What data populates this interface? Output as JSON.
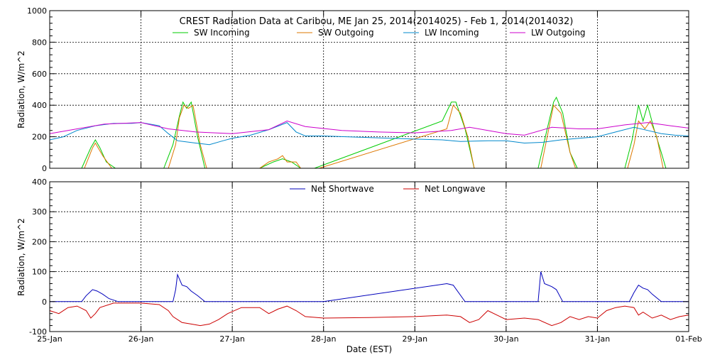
{
  "chart_data": [
    {
      "type": "line",
      "title": "CREST Radiation Data at Caribou, ME   Jan 25, 2014(2014025) - Feb  1, 2014(2014032)",
      "ylabel": "Radiation, W/m^2",
      "xlabel": "",
      "xlim": [
        0,
        7
      ],
      "ylim": [
        0,
        1000
      ],
      "yticks": [
        0,
        200,
        400,
        600,
        800,
        1000
      ],
      "x_tick_labels": [
        "25-Jan",
        "26-Jan",
        "27-Jan",
        "28-Jan",
        "29-Jan",
        "30-Jan",
        "31-Jan",
        "01-Feb"
      ],
      "grid": true,
      "legend_position": "top",
      "series": [
        {
          "name": "SW Incoming",
          "color": "#00cc00",
          "points": [
            [
              0.35,
              0
            ],
            [
              0.45,
              130
            ],
            [
              0.5,
              180
            ],
            [
              0.55,
              130
            ],
            [
              0.62,
              40
            ],
            [
              0.72,
              0
            ],
            [
              1.25,
              0
            ],
            [
              1.35,
              150
            ],
            [
              1.42,
              330
            ],
            [
              1.46,
              420
            ],
            [
              1.5,
              380
            ],
            [
              1.55,
              420
            ],
            [
              1.62,
              200
            ],
            [
              1.7,
              0
            ],
            [
              2.3,
              0
            ],
            [
              2.45,
              40
            ],
            [
              2.55,
              60
            ],
            [
              2.65,
              40
            ],
            [
              2.75,
              0
            ],
            [
              2.9,
              0
            ],
            [
              4.3,
              300
            ],
            [
              4.4,
              420
            ],
            [
              4.45,
              420
            ],
            [
              4.55,
              250
            ],
            [
              4.65,
              0
            ],
            [
              5.35,
              0
            ],
            [
              5.45,
              250
            ],
            [
              5.52,
              420
            ],
            [
              5.55,
              450
            ],
            [
              5.62,
              350
            ],
            [
              5.7,
              100
            ],
            [
              5.78,
              0
            ],
            [
              6.3,
              0
            ],
            [
              6.38,
              180
            ],
            [
              6.45,
              400
            ],
            [
              6.5,
              300
            ],
            [
              6.55,
              400
            ],
            [
              6.62,
              250
            ],
            [
              6.7,
              100
            ],
            [
              6.75,
              0
            ]
          ]
        },
        {
          "name": "SW Outgoing",
          "color": "#dd7700",
          "points": [
            [
              0.38,
              0
            ],
            [
              0.47,
              130
            ],
            [
              0.5,
              160
            ],
            [
              0.58,
              80
            ],
            [
              0.68,
              0
            ],
            [
              1.3,
              0
            ],
            [
              1.38,
              150
            ],
            [
              1.42,
              320
            ],
            [
              1.47,
              400
            ],
            [
              1.52,
              380
            ],
            [
              1.57,
              400
            ],
            [
              1.65,
              150
            ],
            [
              1.72,
              0
            ],
            [
              2.3,
              0
            ],
            [
              2.4,
              40
            ],
            [
              2.5,
              60
            ],
            [
              2.55,
              80
            ],
            [
              2.6,
              40
            ],
            [
              2.7,
              40
            ],
            [
              2.75,
              0
            ],
            [
              2.95,
              0
            ],
            [
              4.35,
              250
            ],
            [
              4.42,
              400
            ],
            [
              4.5,
              350
            ],
            [
              4.58,
              200
            ],
            [
              4.65,
              0
            ],
            [
              5.38,
              0
            ],
            [
              5.45,
              200
            ],
            [
              5.52,
              400
            ],
            [
              5.6,
              350
            ],
            [
              5.7,
              100
            ],
            [
              5.76,
              0
            ],
            [
              6.33,
              0
            ],
            [
              6.4,
              150
            ],
            [
              6.45,
              300
            ],
            [
              6.52,
              250
            ],
            [
              6.58,
              300
            ],
            [
              6.65,
              200
            ],
            [
              6.72,
              0
            ]
          ]
        },
        {
          "name": "LW Incoming",
          "color": "#0088cc",
          "points": [
            [
              0,
              180
            ],
            [
              0.15,
              200
            ],
            [
              0.3,
              240
            ],
            [
              0.5,
              270
            ],
            [
              0.7,
              285
            ],
            [
              0.9,
              285
            ],
            [
              1.0,
              290
            ],
            [
              1.2,
              270
            ],
            [
              1.3,
              220
            ],
            [
              1.4,
              175
            ],
            [
              1.6,
              160
            ],
            [
              1.75,
              150
            ],
            [
              1.9,
              175
            ],
            [
              2.0,
              190
            ],
            [
              2.2,
              210
            ],
            [
              2.4,
              245
            ],
            [
              2.6,
              290
            ],
            [
              2.7,
              230
            ],
            [
              2.8,
              205
            ],
            [
              3.0,
              205
            ],
            [
              3.5,
              195
            ],
            [
              4.0,
              185
            ],
            [
              4.3,
              180
            ],
            [
              4.5,
              170
            ],
            [
              4.8,
              175
            ],
            [
              5.0,
              175
            ],
            [
              5.2,
              160
            ],
            [
              5.4,
              165
            ],
            [
              5.6,
              180
            ],
            [
              5.8,
              190
            ],
            [
              6.0,
              200
            ],
            [
              6.2,
              230
            ],
            [
              6.4,
              260
            ],
            [
              6.55,
              240
            ],
            [
              6.7,
              220
            ],
            [
              6.85,
              210
            ],
            [
              7.0,
              205
            ]
          ]
        },
        {
          "name": "LW Outgoing",
          "color": "#cc00cc",
          "points": [
            [
              0,
              220
            ],
            [
              0.3,
              250
            ],
            [
              0.6,
              280
            ],
            [
              1.0,
              290
            ],
            [
              1.3,
              250
            ],
            [
              1.6,
              230
            ],
            [
              2.0,
              220
            ],
            [
              2.4,
              245
            ],
            [
              2.6,
              300
            ],
            [
              2.8,
              265
            ],
            [
              3.2,
              240
            ],
            [
              3.6,
              230
            ],
            [
              4.0,
              225
            ],
            [
              4.4,
              240
            ],
            [
              4.6,
              260
            ],
            [
              5.0,
              220
            ],
            [
              5.2,
              210
            ],
            [
              5.5,
              260
            ],
            [
              5.8,
              250
            ],
            [
              6.0,
              250
            ],
            [
              6.3,
              275
            ],
            [
              6.55,
              290
            ],
            [
              6.8,
              270
            ],
            [
              7.0,
              255
            ]
          ]
        }
      ]
    },
    {
      "type": "line",
      "title": "",
      "ylabel": "Radiation, W/m^2",
      "xlabel": "Date (EST)",
      "xlim": [
        0,
        7
      ],
      "ylim": [
        -100,
        400
      ],
      "yticks": [
        -100,
        0,
        100,
        200,
        300,
        400
      ],
      "x_tick_labels": [
        "25-Jan",
        "26-Jan",
        "27-Jan",
        "28-Jan",
        "29-Jan",
        "30-Jan",
        "31-Jan",
        "01-Feb"
      ],
      "grid": true,
      "legend_position": "top",
      "series": [
        {
          "name": "Net Shortwave",
          "color": "#0000bb",
          "points": [
            [
              0,
              0
            ],
            [
              0.35,
              0
            ],
            [
              0.4,
              20
            ],
            [
              0.47,
              40
            ],
            [
              0.52,
              35
            ],
            [
              0.58,
              25
            ],
            [
              0.65,
              10
            ],
            [
              0.75,
              0
            ],
            [
              1.35,
              0
            ],
            [
              1.38,
              40
            ],
            [
              1.4,
              90
            ],
            [
              1.45,
              55
            ],
            [
              1.5,
              50
            ],
            [
              1.55,
              35
            ],
            [
              1.62,
              20
            ],
            [
              1.7,
              0
            ],
            [
              3.0,
              0
            ],
            [
              4.35,
              60
            ],
            [
              4.42,
              55
            ],
            [
              4.55,
              0
            ],
            [
              5.35,
              0
            ],
            [
              5.38,
              100
            ],
            [
              5.42,
              60
            ],
            [
              5.5,
              50
            ],
            [
              5.55,
              40
            ],
            [
              5.62,
              0
            ],
            [
              6.35,
              0
            ],
            [
              6.4,
              30
            ],
            [
              6.45,
              55
            ],
            [
              6.5,
              45
            ],
            [
              6.55,
              40
            ],
            [
              6.6,
              25
            ],
            [
              6.7,
              0
            ],
            [
              7.0,
              0
            ]
          ]
        },
        {
          "name": "Net Longwave",
          "color": "#cc0000",
          "points": [
            [
              0,
              -30
            ],
            [
              0.1,
              -40
            ],
            [
              0.2,
              -20
            ],
            [
              0.3,
              -15
            ],
            [
              0.4,
              -30
            ],
            [
              0.45,
              -55
            ],
            [
              0.5,
              -40
            ],
            [
              0.55,
              -20
            ],
            [
              0.7,
              -5
            ],
            [
              1.0,
              -5
            ],
            [
              1.2,
              -10
            ],
            [
              1.3,
              -30
            ],
            [
              1.35,
              -50
            ],
            [
              1.45,
              -70
            ],
            [
              1.55,
              -75
            ],
            [
              1.65,
              -80
            ],
            [
              1.75,
              -75
            ],
            [
              1.85,
              -60
            ],
            [
              1.95,
              -40
            ],
            [
              2.1,
              -20
            ],
            [
              2.3,
              -20
            ],
            [
              2.4,
              -40
            ],
            [
              2.5,
              -25
            ],
            [
              2.6,
              -15
            ],
            [
              2.7,
              -30
            ],
            [
              2.8,
              -50
            ],
            [
              3.0,
              -55
            ],
            [
              3.5,
              -53
            ],
            [
              4.0,
              -50
            ],
            [
              4.35,
              -45
            ],
            [
              4.5,
              -50
            ],
            [
              4.6,
              -70
            ],
            [
              4.7,
              -60
            ],
            [
              4.8,
              -30
            ],
            [
              4.9,
              -45
            ],
            [
              5.0,
              -60
            ],
            [
              5.2,
              -55
            ],
            [
              5.35,
              -60
            ],
            [
              5.5,
              -80
            ],
            [
              5.6,
              -70
            ],
            [
              5.7,
              -50
            ],
            [
              5.8,
              -60
            ],
            [
              5.9,
              -50
            ],
            [
              6.0,
              -55
            ],
            [
              6.1,
              -30
            ],
            [
              6.2,
              -20
            ],
            [
              6.3,
              -15
            ],
            [
              6.4,
              -20
            ],
            [
              6.45,
              -45
            ],
            [
              6.5,
              -35
            ],
            [
              6.6,
              -55
            ],
            [
              6.7,
              -45
            ],
            [
              6.8,
              -60
            ],
            [
              6.9,
              -50
            ],
            [
              7.0,
              -45
            ]
          ]
        }
      ]
    }
  ]
}
